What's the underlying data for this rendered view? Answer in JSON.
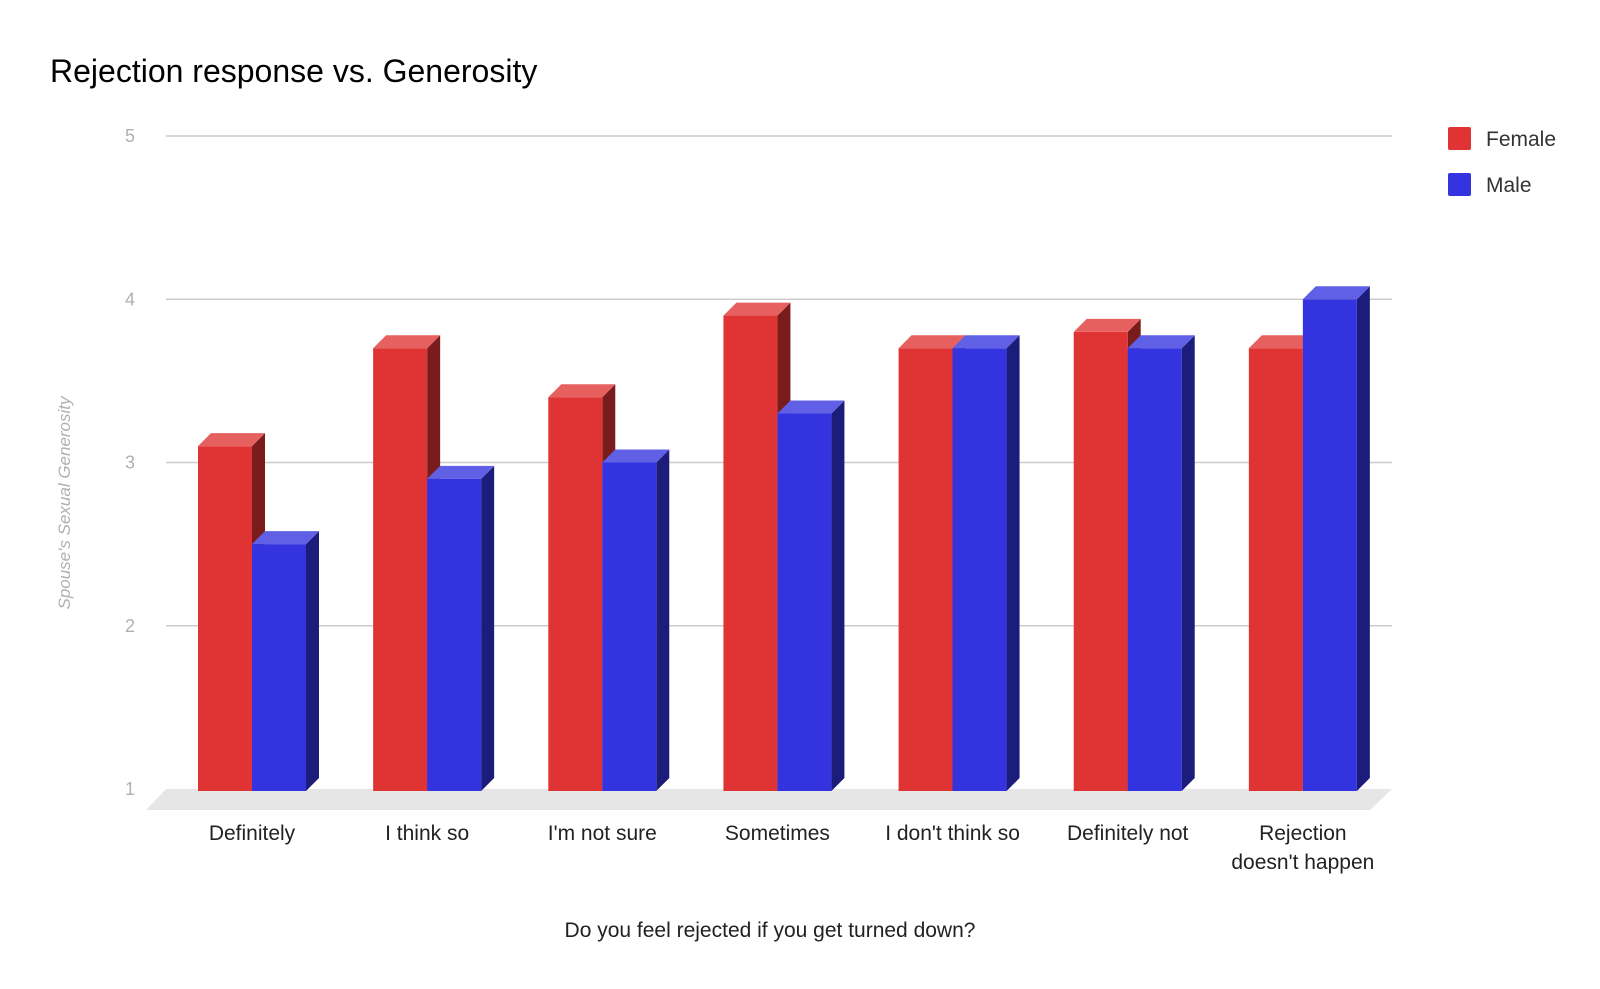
{
  "chart_data": {
    "type": "bar",
    "title": "Rejection response vs. Generosity",
    "xlabel": "Do you feel rejected if you get turned down?",
    "ylabel": "Spouse's Sexual Generosity",
    "ylim": [
      1,
      5
    ],
    "yticks": [
      "1",
      "2",
      "3",
      "4",
      "5"
    ],
    "grid": true,
    "legend_position": "top-right",
    "style": "3d",
    "categories": [
      [
        "Definitely"
      ],
      [
        "I think so"
      ],
      [
        "I'm not sure"
      ],
      [
        "Sometimes"
      ],
      [
        "I don't think so"
      ],
      [
        "Definitely not"
      ],
      [
        "Rejection",
        "doesn't happen"
      ]
    ],
    "series": [
      {
        "name": "Female",
        "color": "#e03333",
        "values": [
          3.1,
          3.7,
          3.4,
          3.9,
          3.7,
          3.8,
          3.7
        ]
      },
      {
        "name": "Male",
        "color": "#3333e0",
        "values": [
          2.5,
          2.9,
          3.0,
          3.3,
          3.7,
          3.7,
          4.0
        ]
      }
    ]
  }
}
